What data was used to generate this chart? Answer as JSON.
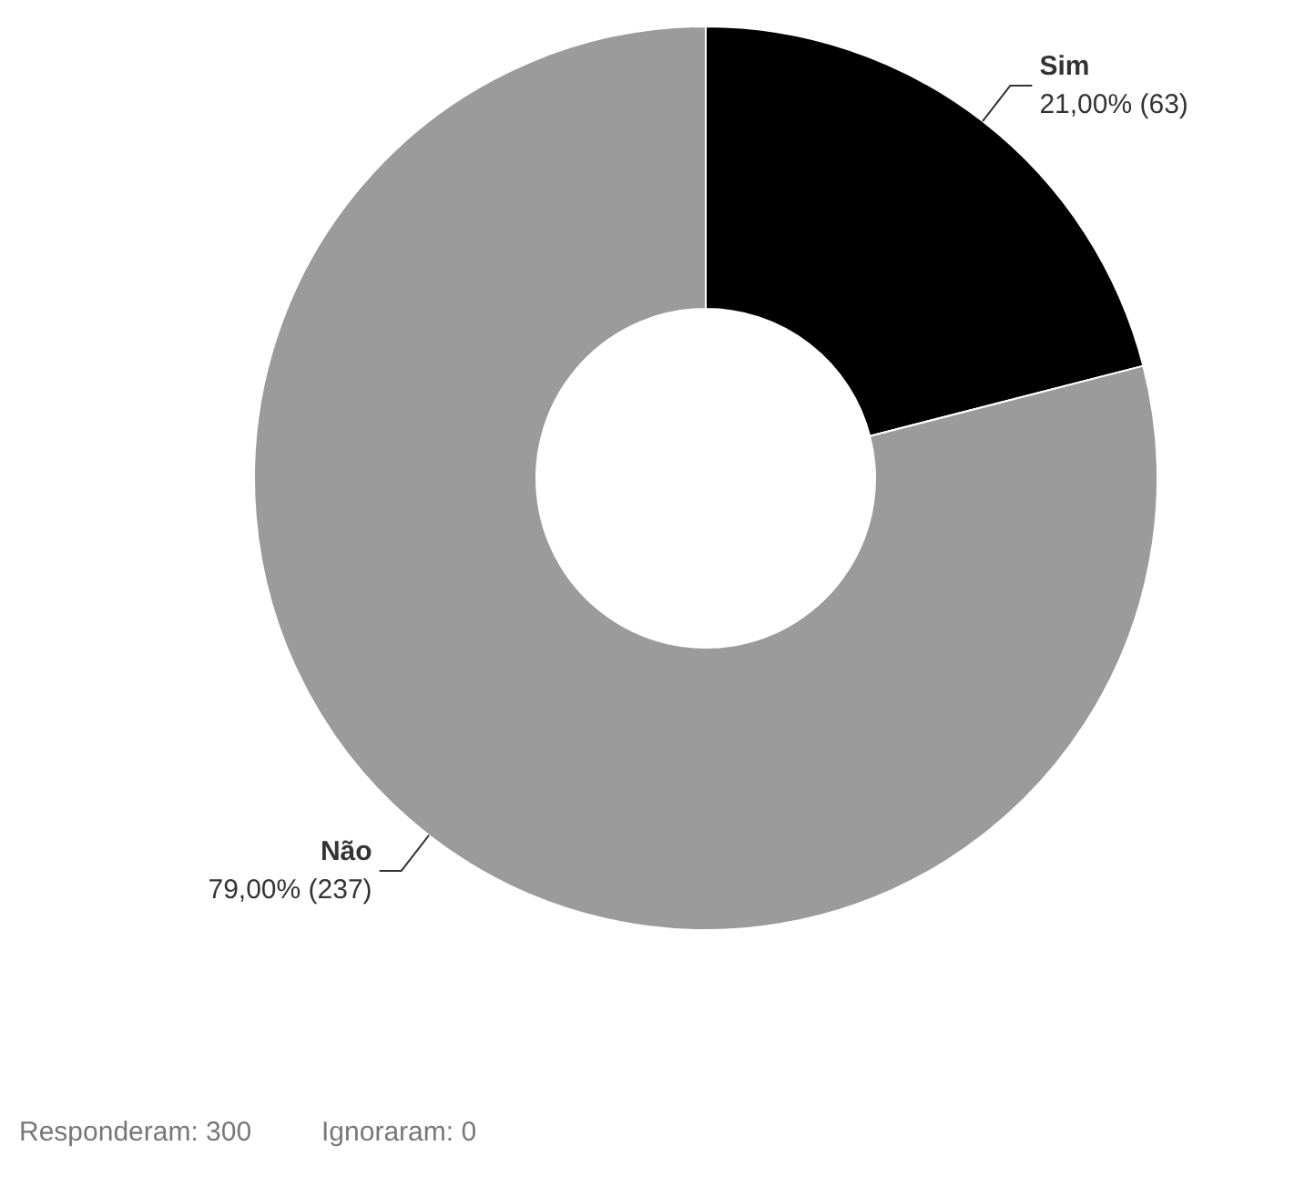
{
  "chart_data": {
    "type": "donut",
    "categories": [
      "Sim",
      "Não"
    ],
    "values": [
      63,
      237
    ],
    "value_labels": [
      "21,00% (63)",
      "79,00% (237)"
    ],
    "colors": [
      "#000000",
      "#9b9b9b"
    ],
    "annotations": [
      "Responderam: 300",
      "Ignoraram: 0"
    ]
  }
}
